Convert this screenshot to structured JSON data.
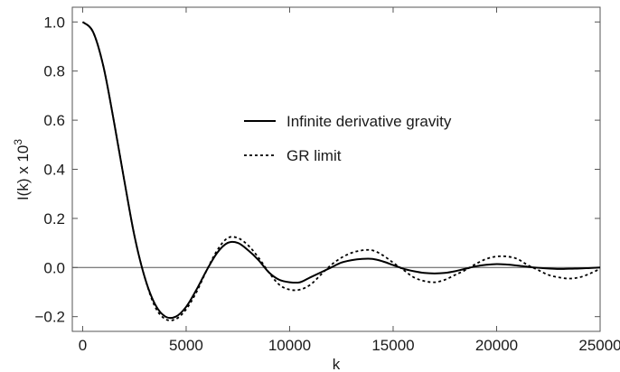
{
  "chart_data": {
    "type": "line",
    "title": "",
    "xlabel": "k",
    "ylabel_base": "I(k) x 10",
    "ylabel_exp": "3",
    "xlim": [
      -500,
      25000
    ],
    "ylim": [
      -0.26,
      1.06
    ],
    "x_ticks": [
      0,
      5000,
      10000,
      15000,
      20000,
      25000
    ],
    "x_tick_labels": [
      "0",
      "5000",
      "10000",
      "15000",
      "20000",
      "25000"
    ],
    "y_ticks": [
      -0.2,
      0.0,
      0.2,
      0.4,
      0.6,
      0.8,
      1.0
    ],
    "y_tick_labels": [
      "−0.2",
      "0.0",
      "0.2",
      "0.4",
      "0.6",
      "0.8",
      "1.0"
    ],
    "zero_line": true,
    "grid": false,
    "legend_position": "center-right",
    "series": [
      {
        "name": "Infinite derivative gravity",
        "style": "solid",
        "x": [
          0,
          500,
          1000,
          1500,
          2000,
          2500,
          3000,
          3500,
          4000,
          4500,
          5000,
          5500,
          6000,
          6500,
          7000,
          7500,
          8000,
          8500,
          9000,
          9500,
          10000,
          10500,
          11000,
          11500,
          12000,
          12500,
          13000,
          13500,
          14000,
          14500,
          15000,
          15500,
          16000,
          16500,
          17000,
          17500,
          18000,
          18500,
          19000,
          19500,
          20000,
          20500,
          21000,
          21500,
          22000,
          22500,
          23000,
          23500,
          24000,
          24500,
          25000
        ],
        "y": [
          1.0,
          0.96,
          0.82,
          0.6,
          0.36,
          0.13,
          -0.04,
          -0.15,
          -0.2,
          -0.2,
          -0.16,
          -0.09,
          -0.01,
          0.06,
          0.1,
          0.1,
          0.07,
          0.03,
          -0.02,
          -0.05,
          -0.06,
          -0.06,
          -0.04,
          -0.02,
          0.0,
          0.02,
          0.03,
          0.035,
          0.035,
          0.025,
          0.01,
          -0.005,
          -0.015,
          -0.022,
          -0.024,
          -0.022,
          -0.015,
          -0.005,
          0.005,
          0.011,
          0.014,
          0.012,
          0.008,
          0.003,
          -0.001,
          -0.004,
          -0.006,
          -0.005,
          -0.004,
          -0.002,
          0.0
        ]
      },
      {
        "name": "GR limit",
        "style": "dashed",
        "x": [
          0,
          500,
          1000,
          1500,
          2000,
          2500,
          3000,
          3500,
          4000,
          4500,
          5000,
          5500,
          6000,
          6500,
          7000,
          7500,
          8000,
          8500,
          9000,
          9500,
          10000,
          10500,
          11000,
          11500,
          12000,
          12500,
          13000,
          13500,
          14000,
          14500,
          15000,
          15500,
          16000,
          16500,
          17000,
          17500,
          18000,
          18500,
          19000,
          19500,
          20000,
          20500,
          21000,
          21500,
          22000,
          22500,
          23000,
          23500,
          24000,
          24500,
          25000
        ],
        "y": [
          1.0,
          0.96,
          0.82,
          0.6,
          0.36,
          0.13,
          -0.04,
          -0.16,
          -0.21,
          -0.21,
          -0.17,
          -0.1,
          -0.01,
          0.07,
          0.12,
          0.12,
          0.09,
          0.04,
          -0.02,
          -0.07,
          -0.09,
          -0.09,
          -0.07,
          -0.03,
          0.01,
          0.04,
          0.06,
          0.07,
          0.07,
          0.05,
          0.02,
          -0.01,
          -0.04,
          -0.055,
          -0.06,
          -0.05,
          -0.03,
          -0.01,
          0.015,
          0.035,
          0.045,
          0.045,
          0.035,
          0.01,
          -0.01,
          -0.03,
          -0.04,
          -0.045,
          -0.04,
          -0.025,
          -0.005
        ]
      }
    ]
  }
}
